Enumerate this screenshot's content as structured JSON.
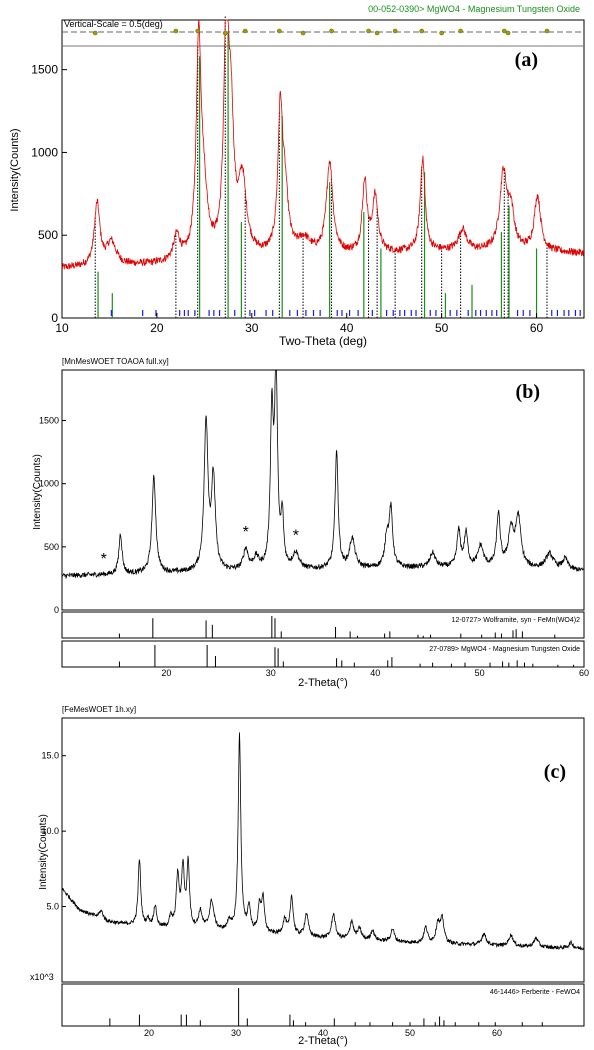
{
  "chart_data": [
    {
      "panel": "(a)",
      "type": "line",
      "header_left": "Vertical-Scale = 0.5(deg)",
      "header_right": "00-052-0390> MgWO4 - Magnesium Tungsten Oxide",
      "xlabel": "Two-Theta (deg)",
      "ylabel": "Intensity(Counts)",
      "xlim": [
        10,
        65
      ],
      "ylim": [
        0,
        1800
      ],
      "xticks": [
        10,
        20,
        30,
        40,
        50,
        60
      ],
      "yticks": [
        0,
        500,
        1000,
        1500
      ],
      "colors": {
        "pattern": "#e00000",
        "reference": "#1a8f1a",
        "fit_lines": "#000000",
        "ticks": "#1a1ae6"
      },
      "background": [
        [
          10,
          300
        ],
        [
          20,
          320
        ],
        [
          30,
          360
        ],
        [
          40,
          380
        ],
        [
          50,
          400
        ],
        [
          60,
          400
        ],
        [
          65,
          390
        ]
      ],
      "peaks": [
        {
          "x": 13.7,
          "h": 680,
          "w": 0.35
        },
        {
          "x": 15.2,
          "h": 450,
          "w": 0.6
        },
        {
          "x": 22.1,
          "h": 480,
          "w": 0.4
        },
        {
          "x": 24.4,
          "h": 1580,
          "w": 0.3
        },
        {
          "x": 24.9,
          "h": 700,
          "w": 0.5
        },
        {
          "x": 27.3,
          "h": 1700,
          "w": 0.3
        },
        {
          "x": 27.8,
          "h": 1100,
          "w": 0.35
        },
        {
          "x": 29.0,
          "h": 800,
          "w": 0.5
        },
        {
          "x": 33.0,
          "h": 1200,
          "w": 0.3
        },
        {
          "x": 33.5,
          "h": 700,
          "w": 0.4
        },
        {
          "x": 35.5,
          "h": 460,
          "w": 0.8
        },
        {
          "x": 38.2,
          "h": 930,
          "w": 0.4
        },
        {
          "x": 41.9,
          "h": 810,
          "w": 0.3
        },
        {
          "x": 43.0,
          "h": 720,
          "w": 0.35
        },
        {
          "x": 48.0,
          "h": 960,
          "w": 0.3
        },
        {
          "x": 52.2,
          "h": 530,
          "w": 0.5
        },
        {
          "x": 56.5,
          "h": 860,
          "w": 0.45
        },
        {
          "x": 57.3,
          "h": 620,
          "w": 0.4
        },
        {
          "x": 60.1,
          "h": 730,
          "w": 0.4
        }
      ],
      "reference_lines": [
        {
          "x": 13.8,
          "h": 280
        },
        {
          "x": 15.3,
          "h": 150
        },
        {
          "x": 24.5,
          "h": 1580
        },
        {
          "x": 27.5,
          "h": 1720
        },
        {
          "x": 28.9,
          "h": 580
        },
        {
          "x": 33.2,
          "h": 1220
        },
        {
          "x": 38.2,
          "h": 820
        },
        {
          "x": 41.8,
          "h": 640
        },
        {
          "x": 43.6,
          "h": 420
        },
        {
          "x": 48.2,
          "h": 880
        },
        {
          "x": 50.4,
          "h": 150
        },
        {
          "x": 53.2,
          "h": 200
        },
        {
          "x": 56.3,
          "h": 520
        },
        {
          "x": 57.1,
          "h": 680
        },
        {
          "x": 60.0,
          "h": 420
        }
      ],
      "fit_lines": [
        13.5,
        22.0,
        24.3,
        27.2,
        29.3,
        32.9,
        35.4,
        38.4,
        42.3,
        43.2,
        45.1,
        47.9,
        50.0,
        52.0,
        56.6,
        57.0,
        61.1
      ],
      "tick_marks": [
        15.2,
        18.5,
        19.9,
        22.4,
        22.9,
        23.3,
        24.0,
        25.5,
        26.0,
        26.6,
        28.2,
        29.8,
        30.3,
        31.5,
        32.2,
        34.0,
        34.8,
        35.7,
        36.5,
        37.2,
        39.0,
        39.5,
        40.3,
        41.2,
        42.7,
        44.2,
        44.9,
        45.6,
        46.1,
        46.8,
        47.3,
        48.8,
        49.4,
        50.9,
        51.6,
        52.8,
        53.6,
        54.1,
        54.7,
        55.3,
        55.8,
        58.0,
        58.6,
        59.3,
        61.6,
        62.2,
        62.9,
        63.4,
        64.1,
        64.6
      ],
      "header_marker_x": [
        13.5,
        22.0,
        24.3,
        27.2,
        29.3,
        32.9,
        35.4,
        38.4,
        42.3,
        43.2,
        45.1,
        47.9,
        50.0,
        52.0,
        56.6,
        57.0,
        61.1
      ]
    },
    {
      "panel": "(b)",
      "type": "line",
      "header_left": "[MnMesWOET TOAOA full.xy]",
      "xlabel": "2-Theta(°)",
      "ylabel": "Intensity(Counts)",
      "xlim": [
        10,
        60
      ],
      "ylim": [
        0,
        1900
      ],
      "xticks": [
        20,
        30,
        40,
        50,
        60
      ],
      "yticks": [
        0,
        500,
        1000,
        1500
      ],
      "asterisk_x": [
        14.0,
        27.6,
        32.4
      ],
      "background": [
        [
          10,
          270
        ],
        [
          20,
          290
        ],
        [
          30,
          310
        ],
        [
          40,
          330
        ],
        [
          50,
          340
        ],
        [
          60,
          310
        ]
      ],
      "peaks": [
        {
          "x": 15.6,
          "h": 600,
          "w": 0.18
        },
        {
          "x": 18.8,
          "h": 1050,
          "w": 0.22
        },
        {
          "x": 23.8,
          "h": 1480,
          "w": 0.22
        },
        {
          "x": 24.5,
          "h": 1020,
          "w": 0.22
        },
        {
          "x": 27.6,
          "h": 470,
          "w": 0.28
        },
        {
          "x": 28.6,
          "h": 400,
          "w": 0.3
        },
        {
          "x": 30.1,
          "h": 1500,
          "w": 0.17
        },
        {
          "x": 30.5,
          "h": 1820,
          "w": 0.17
        },
        {
          "x": 31.1,
          "h": 700,
          "w": 0.15
        },
        {
          "x": 32.4,
          "h": 440,
          "w": 0.35
        },
        {
          "x": 36.3,
          "h": 1250,
          "w": 0.18
        },
        {
          "x": 37.8,
          "h": 560,
          "w": 0.3
        },
        {
          "x": 41.1,
          "h": 560,
          "w": 0.22
        },
        {
          "x": 41.5,
          "h": 780,
          "w": 0.2
        },
        {
          "x": 45.5,
          "h": 450,
          "w": 0.3
        },
        {
          "x": 48.0,
          "h": 620,
          "w": 0.2
        },
        {
          "x": 48.7,
          "h": 600,
          "w": 0.2
        },
        {
          "x": 50.1,
          "h": 500,
          "w": 0.3
        },
        {
          "x": 51.8,
          "h": 750,
          "w": 0.2
        },
        {
          "x": 53.0,
          "h": 620,
          "w": 0.3
        },
        {
          "x": 53.7,
          "h": 720,
          "w": 0.3
        },
        {
          "x": 56.7,
          "h": 440,
          "w": 0.45
        },
        {
          "x": 58.2,
          "h": 400,
          "w": 0.3
        }
      ],
      "references": [
        {
          "label": "12-0727> Wolframite, syn - FeMn(WO4)2",
          "lines": [
            [
              15.5,
              0.2
            ],
            [
              18.7,
              0.9
            ],
            [
              23.8,
              0.8
            ],
            [
              24.4,
              0.6
            ],
            [
              30.1,
              1.0
            ],
            [
              30.4,
              0.9
            ],
            [
              31.0,
              0.3
            ],
            [
              36.2,
              0.5
            ],
            [
              37.6,
              0.3
            ],
            [
              38.3,
              0.1
            ],
            [
              40.9,
              0.2
            ],
            [
              41.4,
              0.3
            ],
            [
              44.1,
              0.15
            ],
            [
              44.6,
              0.1
            ],
            [
              45.3,
              0.15
            ],
            [
              48.2,
              0.2
            ],
            [
              50.2,
              0.15
            ],
            [
              51.5,
              0.25
            ],
            [
              52.1,
              0.2
            ],
            [
              53.2,
              0.35
            ],
            [
              53.5,
              0.4
            ],
            [
              54.1,
              0.3
            ],
            [
              57.2,
              0.15
            ]
          ]
        },
        {
          "label": "27-0789> MgWO4 - Magnesium Tungsten Oxide",
          "lines": [
            [
              15.5,
              0.25
            ],
            [
              18.9,
              1.0
            ],
            [
              23.9,
              1.0
            ],
            [
              24.7,
              0.5
            ],
            [
              30.4,
              0.9
            ],
            [
              30.7,
              0.85
            ],
            [
              31.2,
              0.25
            ],
            [
              36.3,
              0.4
            ],
            [
              36.8,
              0.3
            ],
            [
              38.0,
              0.2
            ],
            [
              41.2,
              0.3
            ],
            [
              41.6,
              0.45
            ],
            [
              44.3,
              0.15
            ],
            [
              45.5,
              0.2
            ],
            [
              47.3,
              0.15
            ],
            [
              48.6,
              0.2
            ],
            [
              51.0,
              0.2
            ],
            [
              52.2,
              0.25
            ],
            [
              52.8,
              0.2
            ],
            [
              53.6,
              0.3
            ],
            [
              54.3,
              0.2
            ],
            [
              55.1,
              0.15
            ],
            [
              57.5,
              0.1
            ],
            [
              59.0,
              0.1
            ]
          ]
        }
      ]
    },
    {
      "panel": "(c)",
      "type": "line",
      "header_left": "[FeMesWOET 1h.xy]",
      "xlabel": "2-Theta(°)",
      "ylabel": "Intensity(Counts)",
      "y_multiplier": "x10^3",
      "xlim": [
        10,
        70
      ],
      "ylim": [
        0,
        17.5
      ],
      "xticks": [
        20,
        30,
        40,
        50,
        60
      ],
      "yticks": [
        5.0,
        10.0,
        15.0
      ],
      "background": [
        [
          10,
          6.2
        ],
        [
          12,
          4.8
        ],
        [
          15,
          4.0
        ],
        [
          20,
          3.6
        ],
        [
          30,
          3.3
        ],
        [
          40,
          2.9
        ],
        [
          50,
          2.6
        ],
        [
          60,
          2.4
        ],
        [
          70,
          2.2
        ]
      ],
      "peaks": [
        {
          "x": 14.5,
          "h": 4.7,
          "w": 0.3
        },
        {
          "x": 18.9,
          "h": 8.1,
          "w": 0.18
        },
        {
          "x": 19.9,
          "h": 4.1,
          "w": 0.2
        },
        {
          "x": 20.7,
          "h": 5.0,
          "w": 0.2
        },
        {
          "x": 22.5,
          "h": 4.2,
          "w": 0.2
        },
        {
          "x": 23.3,
          "h": 6.9,
          "w": 0.2
        },
        {
          "x": 23.9,
          "h": 7.4,
          "w": 0.2
        },
        {
          "x": 24.5,
          "h": 7.7,
          "w": 0.18
        },
        {
          "x": 25.9,
          "h": 4.6,
          "w": 0.25
        },
        {
          "x": 27.2,
          "h": 5.3,
          "w": 0.3
        },
        {
          "x": 29.2,
          "h": 4.0,
          "w": 0.2
        },
        {
          "x": 30.4,
          "h": 16.3,
          "w": 0.18
        },
        {
          "x": 31.5,
          "h": 4.9,
          "w": 0.2
        },
        {
          "x": 32.7,
          "h": 4.9,
          "w": 0.2
        },
        {
          "x": 33.1,
          "h": 5.4,
          "w": 0.2
        },
        {
          "x": 35.6,
          "h": 4.1,
          "w": 0.25
        },
        {
          "x": 36.4,
          "h": 5.6,
          "w": 0.2
        },
        {
          "x": 38.1,
          "h": 4.5,
          "w": 0.25
        },
        {
          "x": 41.2,
          "h": 4.5,
          "w": 0.25
        },
        {
          "x": 43.3,
          "h": 4.0,
          "w": 0.25
        },
        {
          "x": 44.2,
          "h": 3.5,
          "w": 0.25
        },
        {
          "x": 45.7,
          "h": 3.4,
          "w": 0.25
        },
        {
          "x": 48.0,
          "h": 3.5,
          "w": 0.25
        },
        {
          "x": 51.8,
          "h": 3.6,
          "w": 0.25
        },
        {
          "x": 53.2,
          "h": 3.8,
          "w": 0.25
        },
        {
          "x": 53.7,
          "h": 4.1,
          "w": 0.25
        },
        {
          "x": 58.5,
          "h": 3.2,
          "w": 0.3
        },
        {
          "x": 61.6,
          "h": 3.1,
          "w": 0.3
        },
        {
          "x": 64.5,
          "h": 2.9,
          "w": 0.3
        },
        {
          "x": 68.5,
          "h": 2.6,
          "w": 0.3
        }
      ],
      "references": [
        {
          "label": "46-1446> Ferberite - FeWO4",
          "lines": [
            [
              15.5,
              0.2
            ],
            [
              18.9,
              0.3
            ],
            [
              23.7,
              0.3
            ],
            [
              24.3,
              0.3
            ],
            [
              25.9,
              0.15
            ],
            [
              30.3,
              1.0
            ],
            [
              31.3,
              0.2
            ],
            [
              36.2,
              0.3
            ],
            [
              36.6,
              0.15
            ],
            [
              38.0,
              0.1
            ],
            [
              41.3,
              0.2
            ],
            [
              43.7,
              0.1
            ],
            [
              45.4,
              0.1
            ],
            [
              48.0,
              0.1
            ],
            [
              50.0,
              0.1
            ],
            [
              51.6,
              0.2
            ],
            [
              52.9,
              0.1
            ],
            [
              53.4,
              0.25
            ],
            [
              53.9,
              0.15
            ],
            [
              55.2,
              0.1
            ],
            [
              57.9,
              0.1
            ],
            [
              59.8,
              0.1
            ],
            [
              62.9,
              0.1
            ],
            [
              65.2,
              0.1
            ]
          ]
        }
      ]
    }
  ],
  "panel_labels": {
    "a": "(a)",
    "b": "(b)",
    "c": "(c)"
  }
}
